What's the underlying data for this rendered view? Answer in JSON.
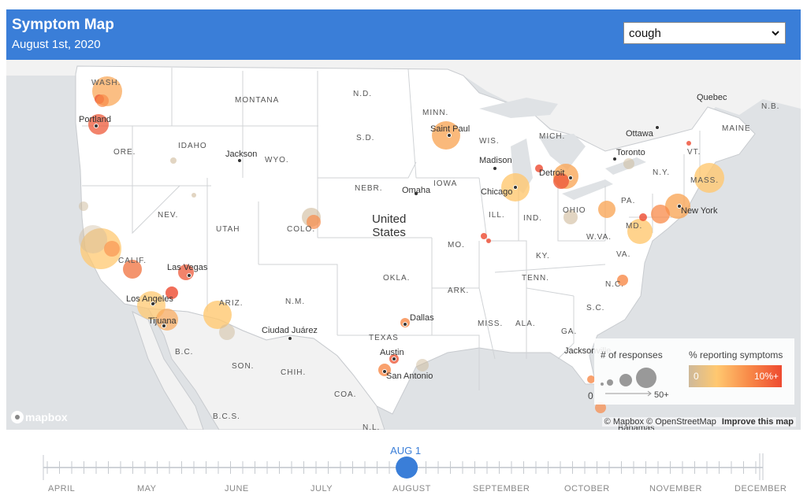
{
  "header": {
    "title": "Symptom Map",
    "subtitle": "August 1st, 2020",
    "symptom_select": {
      "value": "cough",
      "icon": "chevron-down-icon"
    }
  },
  "map": {
    "country_label": [
      "United",
      "States"
    ],
    "state_labels": [
      "WASH.",
      "MONTANA",
      "N.D.",
      "MINN.",
      "ORE.",
      "IDAHO",
      "WYO.",
      "S.D.",
      "WIS.",
      "MICH.",
      "NEBR.",
      "IOWA",
      "NEV.",
      "UTAH",
      "COLO.",
      "ILL.",
      "IND.",
      "OHIO",
      "PA.",
      "N.Y.",
      "VT.",
      "MASS.",
      "CALIF.",
      "ARIZ.",
      "N.M.",
      "OKLA.",
      "MO.",
      "KY.",
      "W.VA.",
      "VA.",
      "MD.",
      "TENN.",
      "N.C.",
      "ARK.",
      "S.C.",
      "MISS.",
      "ALA.",
      "GA.",
      "TEXAS",
      "SON.",
      "CHIH.",
      "COA.",
      "B.C.",
      "B.C.S.",
      "N.L.",
      "MAINE",
      "N.B."
    ],
    "city_labels": [
      "Portland",
      "Saint Paul",
      "Jackson",
      "Madison",
      "Detroit",
      "Toronto",
      "Ottawa",
      "Quebec",
      "Omaha",
      "Chicago",
      "New York",
      "Las Vegas",
      "Los Angeles",
      "Tijuana",
      "Dallas",
      "Austin",
      "San Antonio",
      "Ciudad Juárez",
      "Jacksonville",
      "Bahamas"
    ],
    "attribution": {
      "mapbox": "© Mapbox",
      "osm": "© OpenStreetMap",
      "improve": "Improve this map"
    },
    "logo_text": "mapbox"
  },
  "legend": {
    "size_title": "# of responses",
    "size_min": "0",
    "size_max": "50+",
    "color_title": "% reporting symptoms",
    "color_min": "0",
    "color_max": "10%+",
    "colors": [
      "#ceb99a",
      "#ffc870",
      "#f88a48",
      "#ee4a30"
    ]
  },
  "timeline": {
    "current_label": "AUG 1",
    "current_fraction": 0.505,
    "months": [
      "APRIL",
      "MAY",
      "JUNE",
      "JULY",
      "AUGUST",
      "SEPTEMBER",
      "OCTOBER",
      "NOVEMBER",
      "DECEMBER"
    ],
    "accent_color": "#3a7ed8"
  }
}
